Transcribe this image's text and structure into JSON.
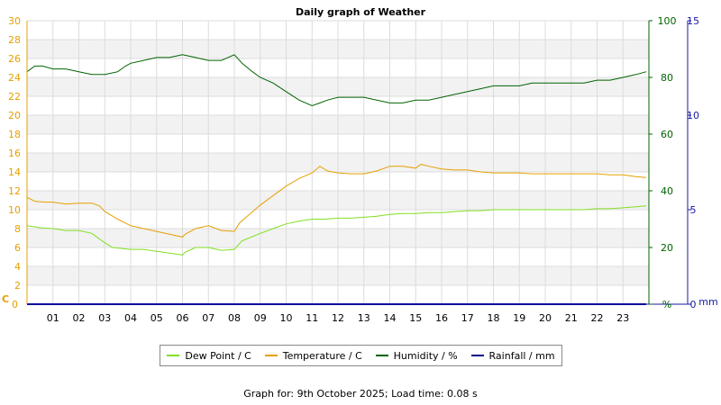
{
  "chart_data": {
    "type": "line",
    "title": "Daily graph of Weather",
    "x_tick_labels": [
      "01",
      "02",
      "03",
      "04",
      "05",
      "06",
      "07",
      "08",
      "09",
      "10",
      "11",
      "12",
      "13",
      "14",
      "15",
      "16",
      "17",
      "18",
      "19",
      "20",
      "21",
      "22",
      "23"
    ],
    "xlim": [
      0,
      24
    ],
    "left_axis": {
      "label": "C",
      "ylim": [
        0,
        30
      ],
      "ticks": [
        0,
        2,
        4,
        6,
        8,
        10,
        12,
        14,
        16,
        18,
        20,
        22,
        24,
        26,
        28,
        30
      ],
      "color": "#e6a000"
    },
    "humidity_axis": {
      "label": "%",
      "ylim": [
        0,
        100
      ],
      "ticks": [
        0,
        20,
        40,
        60,
        80,
        100
      ],
      "color": "#006400"
    },
    "rain_axis": {
      "label": "mm",
      "ylim": [
        0,
        15
      ],
      "ticks": [
        0,
        5,
        10,
        15
      ],
      "color": "#1a1aa6"
    },
    "grid": true,
    "series": [
      {
        "name": "Dew Point / C",
        "color": "#80e020",
        "axis": "left",
        "x": [
          0,
          0.5,
          1,
          1.5,
          2,
          2.5,
          3,
          3.3,
          4,
          4.5,
          5,
          5.5,
          6,
          6.1,
          6.5,
          7,
          7.5,
          8,
          8.3,
          9,
          9.5,
          10,
          10.5,
          11,
          11.5,
          12,
          12.5,
          13,
          13.5,
          14,
          14.5,
          15,
          15.5,
          16,
          16.5,
          17,
          17.5,
          18,
          18.5,
          19,
          19.5,
          20,
          20.5,
          21,
          21.5,
          22,
          22.5,
          23,
          23.5,
          23.9
        ],
        "values": [
          8.3,
          8.1,
          8.0,
          7.8,
          7.8,
          7.5,
          6.5,
          6.0,
          5.8,
          5.8,
          5.6,
          5.4,
          5.2,
          5.5,
          6.0,
          6.0,
          5.7,
          5.8,
          6.7,
          7.5,
          8.0,
          8.5,
          8.8,
          9.0,
          9.0,
          9.1,
          9.1,
          9.2,
          9.3,
          9.5,
          9.6,
          9.6,
          9.7,
          9.7,
          9.8,
          9.9,
          9.9,
          10.0,
          10.0,
          10.0,
          10.0,
          10.0,
          10.0,
          10.0,
          10.0,
          10.1,
          10.1,
          10.2,
          10.3,
          10.4
        ]
      },
      {
        "name": "Temperature / C",
        "color": "#e6a000",
        "axis": "left",
        "x": [
          0,
          0.3,
          0.7,
          1,
          1.5,
          2,
          2.5,
          2.8,
          3,
          3.5,
          4,
          4.5,
          5,
          5.5,
          6,
          6.1,
          6.5,
          7,
          7.5,
          8,
          8.2,
          8.5,
          9,
          9.5,
          10,
          10.5,
          11,
          11.3,
          11.6,
          12,
          12.5,
          13,
          13.5,
          14,
          14.5,
          15,
          15.2,
          15.5,
          16,
          16.5,
          17,
          17.5,
          18,
          18.5,
          19,
          19.5,
          20,
          20.5,
          21,
          21.5,
          22,
          22.5,
          23,
          23.5,
          23.9
        ],
        "values": [
          11.3,
          10.9,
          10.8,
          10.8,
          10.6,
          10.7,
          10.7,
          10.4,
          9.8,
          9.0,
          8.3,
          8.0,
          7.7,
          7.4,
          7.1,
          7.4,
          8.0,
          8.3,
          7.8,
          7.7,
          8.6,
          9.3,
          10.5,
          11.5,
          12.5,
          13.3,
          13.9,
          14.6,
          14.1,
          13.9,
          13.8,
          13.8,
          14.1,
          14.6,
          14.6,
          14.4,
          14.8,
          14.6,
          14.3,
          14.2,
          14.2,
          14.0,
          13.9,
          13.9,
          13.9,
          13.8,
          13.8,
          13.8,
          13.8,
          13.8,
          13.8,
          13.7,
          13.7,
          13.5,
          13.4
        ]
      },
      {
        "name": "Humidity / %",
        "color": "#006400",
        "axis": "humidity",
        "x": [
          0,
          0.3,
          0.6,
          1,
          1.5,
          2,
          2.5,
          3,
          3.5,
          3.8,
          4,
          4.5,
          5,
          5.5,
          6,
          6.5,
          7,
          7.5,
          8,
          8.1,
          8.3,
          8.7,
          9,
          9.5,
          10,
          10.5,
          11,
          11.3,
          11.6,
          12,
          12.5,
          13,
          13.5,
          14,
          14.5,
          15,
          15.5,
          16,
          16.5,
          17,
          17.5,
          18,
          18.5,
          19,
          19.5,
          20,
          20.5,
          21,
          21.5,
          22,
          22.5,
          23,
          23.5,
          23.9
        ],
        "values": [
          82,
          84,
          84,
          83,
          83,
          82,
          81,
          81,
          82,
          84,
          85,
          86,
          87,
          87,
          88,
          87,
          86,
          86,
          88,
          87,
          85,
          82,
          80,
          78,
          75,
          72,
          70,
          71,
          72,
          73,
          73,
          73,
          72,
          71,
          71,
          72,
          72,
          73,
          74,
          75,
          76,
          77,
          77,
          77,
          78,
          78,
          78,
          78,
          78,
          79,
          79,
          80,
          81,
          82
        ]
      },
      {
        "name": "Rainfall / mm",
        "color": "#00008b",
        "axis": "rain",
        "x": [
          0,
          23.9
        ],
        "values": [
          0,
          0
        ]
      }
    ]
  },
  "footer": "Graph for: 9th October 2025; Load time: 0.08 s"
}
